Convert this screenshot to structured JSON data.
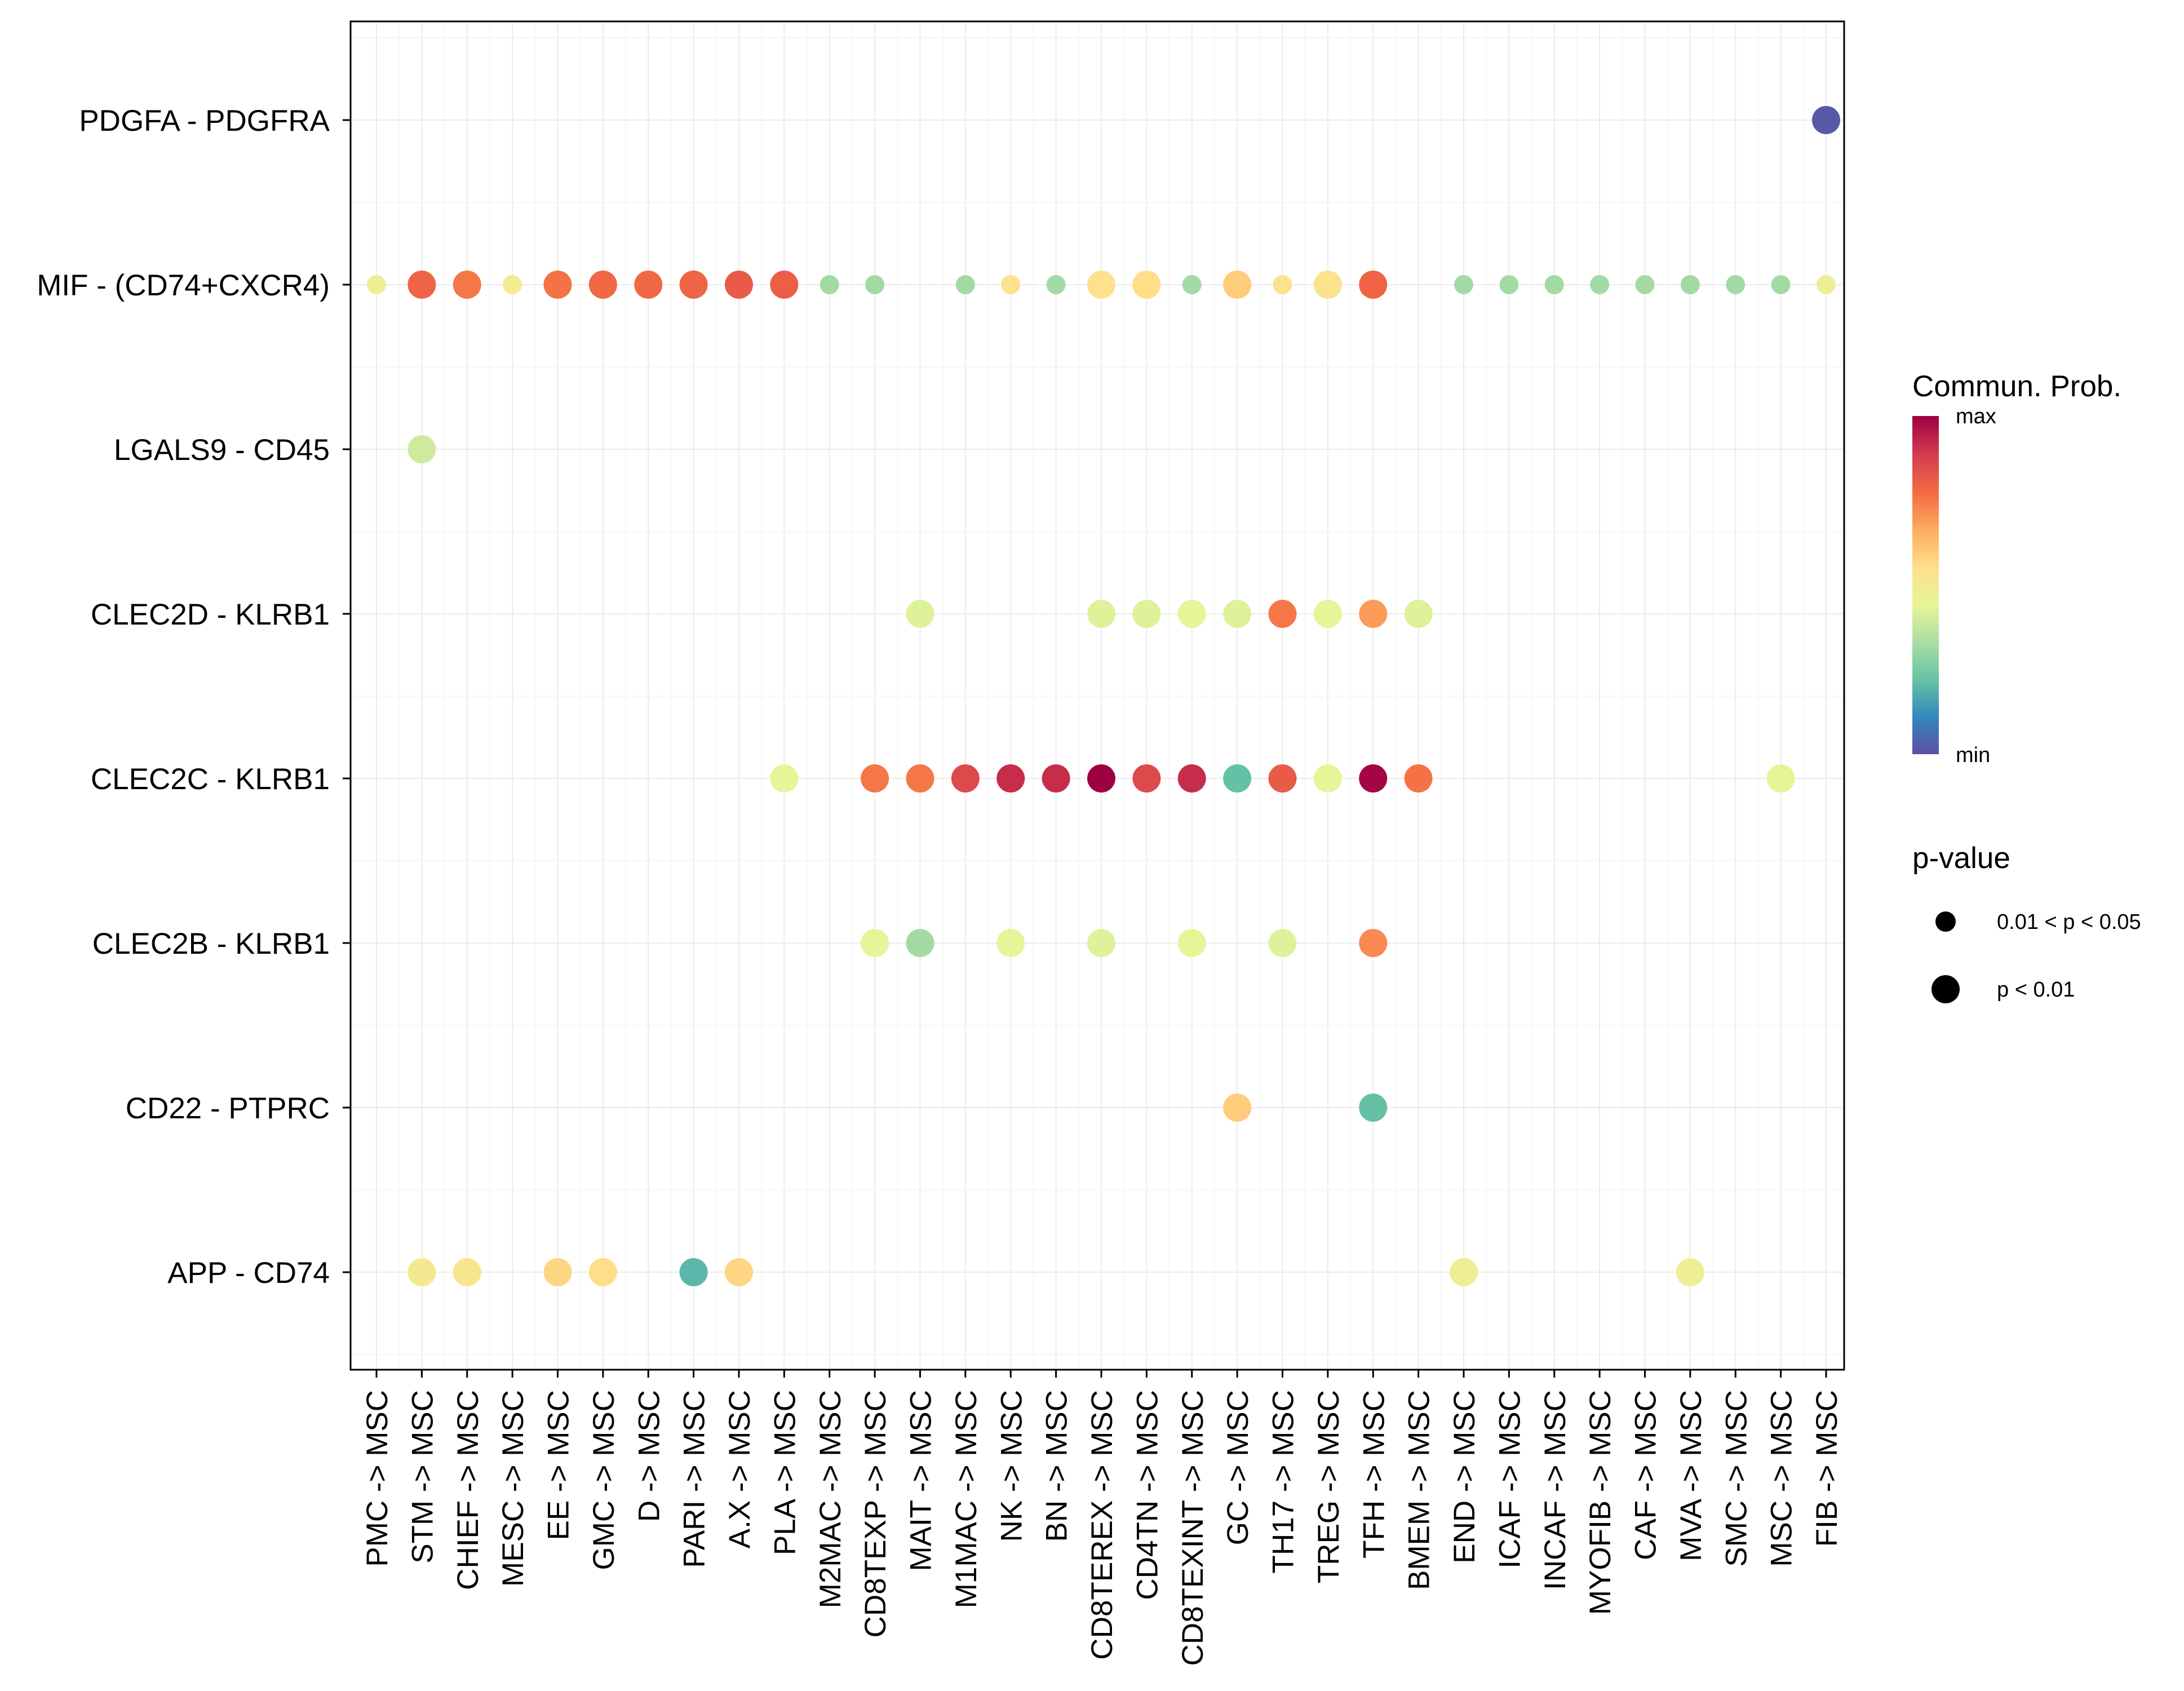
{
  "chart_data": {
    "type": "scatter",
    "subtype": "dot-plot",
    "title": "",
    "xlabel": "",
    "ylabel": "",
    "grid": true,
    "x_categories": [
      "PMC -> MSC",
      "STM -> MSC",
      "CHIEF -> MSC",
      "MESC -> MSC",
      "EE -> MSC",
      "GMC -> MSC",
      "D -> MSC",
      "PARI -> MSC",
      "A.X -> MSC",
      "PLA -> MSC",
      "M2MAC -> MSC",
      "CD8TEXP -> MSC",
      "MAIT -> MSC",
      "M1MAC -> MSC",
      "NK -> MSC",
      "BN -> MSC",
      "CD8TEREX -> MSC",
      "CD4TN -> MSC",
      "CD8TEXINT -> MSC",
      "GC -> MSC",
      "TH17 -> MSC",
      "TREG -> MSC",
      "TFH -> MSC",
      "BMEM -> MSC",
      "END -> MSC",
      "ICAF -> MSC",
      "INCAF -> MSC",
      "MYOFIB -> MSC",
      "CAF -> MSC",
      "MVA -> MSC",
      "SMC -> MSC",
      "MSC -> MSC",
      "FIB -> MSC"
    ],
    "y_categories": [
      "APP - CD74",
      "CD22 - PTPRC",
      "CLEC2B - KLRB1",
      "CLEC2C - KLRB1",
      "CLEC2D - KLRB1",
      "LGALS9 - CD45",
      "MIF - (CD74+CXCR4)",
      "PDGFA - PDGFRA"
    ],
    "points": [
      {
        "x": "FIB -> MSC",
        "y": "PDGFA - PDGFRA",
        "prob": 0.02,
        "p": "p < 0.01"
      },
      {
        "x": "PMC -> MSC",
        "y": "MIF - (CD74+CXCR4)",
        "prob": 0.48,
        "p": "0.01 < p < 0.05"
      },
      {
        "x": "STM -> MSC",
        "y": "MIF - (CD74+CXCR4)",
        "prob": 0.8,
        "p": "p < 0.01"
      },
      {
        "x": "CHIEF -> MSC",
        "y": "MIF - (CD74+CXCR4)",
        "prob": 0.76,
        "p": "p < 0.01"
      },
      {
        "x": "MESC -> MSC",
        "y": "MIF - (CD74+CXCR4)",
        "prob": 0.5,
        "p": "0.01 < p < 0.05"
      },
      {
        "x": "EE -> MSC",
        "y": "MIF - (CD74+CXCR4)",
        "prob": 0.77,
        "p": "p < 0.01"
      },
      {
        "x": "GMC -> MSC",
        "y": "MIF - (CD74+CXCR4)",
        "prob": 0.79,
        "p": "p < 0.01"
      },
      {
        "x": "D -> MSC",
        "y": "MIF - (CD74+CXCR4)",
        "prob": 0.79,
        "p": "p < 0.01"
      },
      {
        "x": "PARI -> MSC",
        "y": "MIF - (CD74+CXCR4)",
        "prob": 0.8,
        "p": "p < 0.01"
      },
      {
        "x": "A.X -> MSC",
        "y": "MIF - (CD74+CXCR4)",
        "prob": 0.82,
        "p": "p < 0.01"
      },
      {
        "x": "PLA -> MSC",
        "y": "MIF - (CD74+CXCR4)",
        "prob": 0.81,
        "p": "p < 0.01"
      },
      {
        "x": "M2MAC -> MSC",
        "y": "MIF - (CD74+CXCR4)",
        "prob": 0.32,
        "p": "0.01 < p < 0.05"
      },
      {
        "x": "CD8TEXP -> MSC",
        "y": "MIF - (CD74+CXCR4)",
        "prob": 0.32,
        "p": "0.01 < p < 0.05"
      },
      {
        "x": "M1MAC -> MSC",
        "y": "MIF - (CD74+CXCR4)",
        "prob": 0.32,
        "p": "0.01 < p < 0.05"
      },
      {
        "x": "NK -> MSC",
        "y": "MIF - (CD74+CXCR4)",
        "prob": 0.55,
        "p": "0.01 < p < 0.05"
      },
      {
        "x": "BN -> MSC",
        "y": "MIF - (CD74+CXCR4)",
        "prob": 0.32,
        "p": "0.01 < p < 0.05"
      },
      {
        "x": "CD8TEREX -> MSC",
        "y": "MIF - (CD74+CXCR4)",
        "prob": 0.55,
        "p": "p < 0.01"
      },
      {
        "x": "CD4TN -> MSC",
        "y": "MIF - (CD74+CXCR4)",
        "prob": 0.56,
        "p": "p < 0.01"
      },
      {
        "x": "CD8TEXINT -> MSC",
        "y": "MIF - (CD74+CXCR4)",
        "prob": 0.32,
        "p": "0.01 < p < 0.05"
      },
      {
        "x": "GC -> MSC",
        "y": "MIF - (CD74+CXCR4)",
        "prob": 0.6,
        "p": "p < 0.01"
      },
      {
        "x": "TH17 -> MSC",
        "y": "MIF - (CD74+CXCR4)",
        "prob": 0.55,
        "p": "0.01 < p < 0.05"
      },
      {
        "x": "TREG -> MSC",
        "y": "MIF - (CD74+CXCR4)",
        "prob": 0.54,
        "p": "p < 0.01"
      },
      {
        "x": "TFH -> MSC",
        "y": "MIF - (CD74+CXCR4)",
        "prob": 0.8,
        "p": "p < 0.01"
      },
      {
        "x": "END -> MSC",
        "y": "MIF - (CD74+CXCR4)",
        "prob": 0.32,
        "p": "0.01 < p < 0.05"
      },
      {
        "x": "ICAF -> MSC",
        "y": "MIF - (CD74+CXCR4)",
        "prob": 0.32,
        "p": "0.01 < p < 0.05"
      },
      {
        "x": "INCAF -> MSC",
        "y": "MIF - (CD74+CXCR4)",
        "prob": 0.32,
        "p": "0.01 < p < 0.05"
      },
      {
        "x": "MYOFIB -> MSC",
        "y": "MIF - (CD74+CXCR4)",
        "prob": 0.32,
        "p": "0.01 < p < 0.05"
      },
      {
        "x": "CAF -> MSC",
        "y": "MIF - (CD74+CXCR4)",
        "prob": 0.32,
        "p": "0.01 < p < 0.05"
      },
      {
        "x": "MVA -> MSC",
        "y": "MIF - (CD74+CXCR4)",
        "prob": 0.32,
        "p": "0.01 < p < 0.05"
      },
      {
        "x": "SMC -> MSC",
        "y": "MIF - (CD74+CXCR4)",
        "prob": 0.32,
        "p": "0.01 < p < 0.05"
      },
      {
        "x": "MSC -> MSC",
        "y": "MIF - (CD74+CXCR4)",
        "prob": 0.32,
        "p": "0.01 < p < 0.05"
      },
      {
        "x": "FIB -> MSC",
        "y": "MIF - (CD74+CXCR4)",
        "prob": 0.48,
        "p": "0.01 < p < 0.05"
      },
      {
        "x": "STM -> MSC",
        "y": "LGALS9 - CD45",
        "prob": 0.4,
        "p": "p < 0.01"
      },
      {
        "x": "MAIT -> MSC",
        "y": "CLEC2D - KLRB1",
        "prob": 0.43,
        "p": "p < 0.01"
      },
      {
        "x": "CD8TEREX -> MSC",
        "y": "CLEC2D - KLRB1",
        "prob": 0.43,
        "p": "p < 0.01"
      },
      {
        "x": "CD4TN -> MSC",
        "y": "CLEC2D - KLRB1",
        "prob": 0.43,
        "p": "p < 0.01"
      },
      {
        "x": "CD8TEXINT -> MSC",
        "y": "CLEC2D - KLRB1",
        "prob": 0.45,
        "p": "p < 0.01"
      },
      {
        "x": "GC -> MSC",
        "y": "CLEC2D - KLRB1",
        "prob": 0.43,
        "p": "p < 0.01"
      },
      {
        "x": "TH17 -> MSC",
        "y": "CLEC2D - KLRB1",
        "prob": 0.76,
        "p": "p < 0.01"
      },
      {
        "x": "TREG -> MSC",
        "y": "CLEC2D - KLRB1",
        "prob": 0.45,
        "p": "p < 0.01"
      },
      {
        "x": "TFH -> MSC",
        "y": "CLEC2D - KLRB1",
        "prob": 0.7,
        "p": "p < 0.01"
      },
      {
        "x": "BMEM -> MSC",
        "y": "CLEC2D - KLRB1",
        "prob": 0.43,
        "p": "p < 0.01"
      },
      {
        "x": "PLA -> MSC",
        "y": "CLEC2C - KLRB1",
        "prob": 0.45,
        "p": "p < 0.01"
      },
      {
        "x": "CD8TEXP -> MSC",
        "y": "CLEC2C - KLRB1",
        "prob": 0.76,
        "p": "p < 0.01"
      },
      {
        "x": "MAIT -> MSC",
        "y": "CLEC2C - KLRB1",
        "prob": 0.76,
        "p": "p < 0.01"
      },
      {
        "x": "M1MAC -> MSC",
        "y": "CLEC2C - KLRB1",
        "prob": 0.86,
        "p": "p < 0.01"
      },
      {
        "x": "NK -> MSC",
        "y": "CLEC2C - KLRB1",
        "prob": 0.92,
        "p": "p < 0.01"
      },
      {
        "x": "BN -> MSC",
        "y": "CLEC2C - KLRB1",
        "prob": 0.92,
        "p": "p < 0.01"
      },
      {
        "x": "CD8TEREX -> MSC",
        "y": "CLEC2C - KLRB1",
        "prob": 1.0,
        "p": "p < 0.01"
      },
      {
        "x": "CD4TN -> MSC",
        "y": "CLEC2C - KLRB1",
        "prob": 0.86,
        "p": "p < 0.01"
      },
      {
        "x": "CD8TEXINT -> MSC",
        "y": "CLEC2C - KLRB1",
        "prob": 0.92,
        "p": "p < 0.01"
      },
      {
        "x": "GC -> MSC",
        "y": "CLEC2C - KLRB1",
        "prob": 0.22,
        "p": "p < 0.01"
      },
      {
        "x": "TH17 -> MSC",
        "y": "CLEC2C - KLRB1",
        "prob": 0.82,
        "p": "p < 0.01"
      },
      {
        "x": "TREG -> MSC",
        "y": "CLEC2C - KLRB1",
        "prob": 0.45,
        "p": "p < 0.01"
      },
      {
        "x": "TFH -> MSC",
        "y": "CLEC2C - KLRB1",
        "prob": 0.99,
        "p": "p < 0.01"
      },
      {
        "x": "BMEM -> MSC",
        "y": "CLEC2C - KLRB1",
        "prob": 0.77,
        "p": "p < 0.01"
      },
      {
        "x": "MSC -> MSC",
        "y": "CLEC2C - KLRB1",
        "prob": 0.45,
        "p": "p < 0.01"
      },
      {
        "x": "CD8TEXP -> MSC",
        "y": "CLEC2B - KLRB1",
        "prob": 0.45,
        "p": "p < 0.01"
      },
      {
        "x": "MAIT -> MSC",
        "y": "CLEC2B - KLRB1",
        "prob": 0.32,
        "p": "p < 0.01"
      },
      {
        "x": "NK -> MSC",
        "y": "CLEC2B - KLRB1",
        "prob": 0.45,
        "p": "p < 0.01"
      },
      {
        "x": "CD8TEREX -> MSC",
        "y": "CLEC2B - KLRB1",
        "prob": 0.43,
        "p": "p < 0.01"
      },
      {
        "x": "CD8TEXINT -> MSC",
        "y": "CLEC2B - KLRB1",
        "prob": 0.45,
        "p": "p < 0.01"
      },
      {
        "x": "TH17 -> MSC",
        "y": "CLEC2B - KLRB1",
        "prob": 0.43,
        "p": "p < 0.01"
      },
      {
        "x": "TFH -> MSC",
        "y": "CLEC2B - KLRB1",
        "prob": 0.73,
        "p": "p < 0.01"
      },
      {
        "x": "GC -> MSC",
        "y": "CD22 - PTPRC",
        "prob": 0.6,
        "p": "p < 0.01"
      },
      {
        "x": "TFH -> MSC",
        "y": "CD22 - PTPRC",
        "prob": 0.22,
        "p": "p < 0.01"
      },
      {
        "x": "STM -> MSC",
        "y": "APP - CD74",
        "prob": 0.51,
        "p": "p < 0.01"
      },
      {
        "x": "CHIEF -> MSC",
        "y": "APP - CD74",
        "prob": 0.52,
        "p": "p < 0.01"
      },
      {
        "x": "EE -> MSC",
        "y": "APP - CD74",
        "prob": 0.58,
        "p": "p < 0.01"
      },
      {
        "x": "GMC -> MSC",
        "y": "APP - CD74",
        "prob": 0.56,
        "p": "p < 0.01"
      },
      {
        "x": "PARI -> MSC",
        "y": "APP - CD74",
        "prob": 0.2,
        "p": "p < 0.01"
      },
      {
        "x": "A.X -> MSC",
        "y": "APP - CD74",
        "prob": 0.58,
        "p": "p < 0.01"
      },
      {
        "x": "END -> MSC",
        "y": "APP - CD74",
        "prob": 0.48,
        "p": "p < 0.01"
      },
      {
        "x": "MVA -> MSC",
        "y": "APP - CD74",
        "prob": 0.48,
        "p": "p < 0.01"
      }
    ],
    "color_scale": {
      "name": "Spectral",
      "colors": [
        "#5E4FA2",
        "#3288BD",
        "#66C2A5",
        "#ABDDA4",
        "#E6F598",
        "#FEE08B",
        "#FDAE61",
        "#F46D43",
        "#D53E4F",
        "#9E0142"
      ]
    },
    "legend": {
      "color_title": "Commun. Prob.",
      "color_max_label": "max",
      "color_min_label": "min",
      "size_title": "p-value",
      "size_items": [
        "0.01 < p < 0.05",
        "p < 0.01"
      ],
      "placement": "right"
    }
  }
}
